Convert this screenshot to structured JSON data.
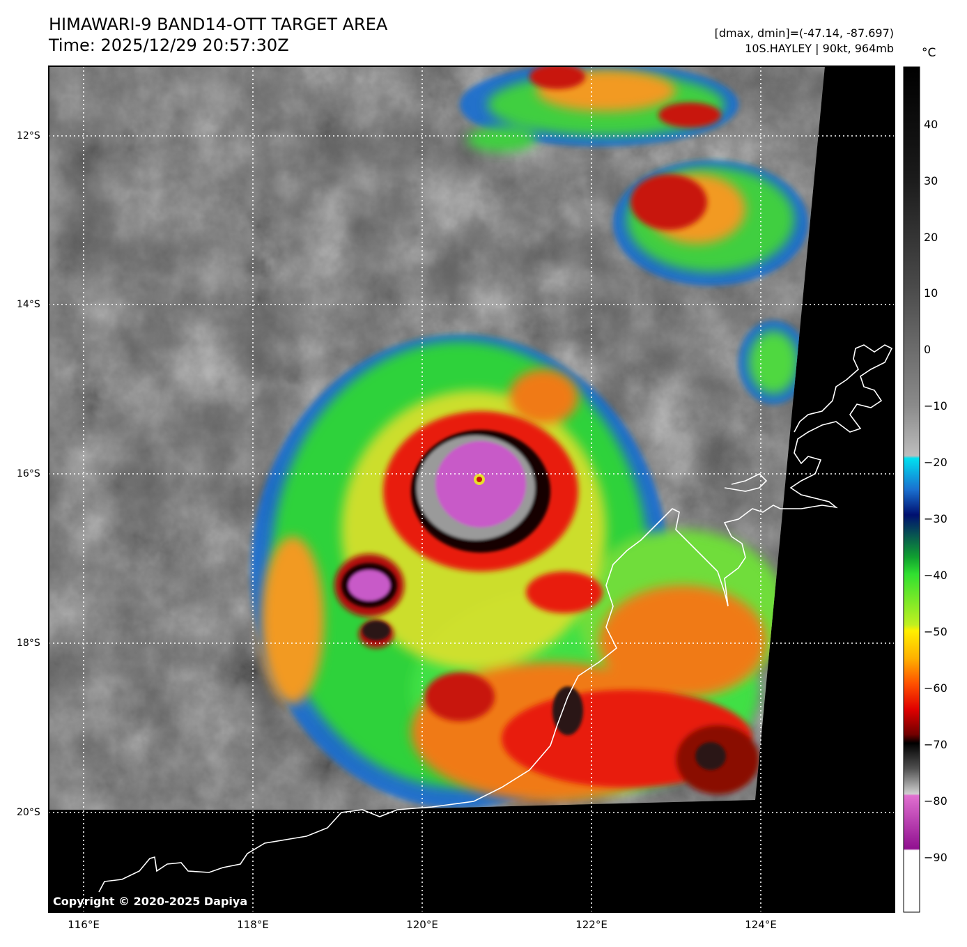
{
  "header": {
    "title_line1": "HIMAWARI-9 BAND14-OTT TARGET AREA",
    "title_line2": "Time: 2025/12/29 20:57:30Z",
    "range_text": "[dmax, dmin]=(-47.14, -87.697)",
    "storm_text": "10S.HAYLEY | 90kt, 964mb"
  },
  "axes": {
    "lat_labels": [
      "12°S",
      "14°S",
      "16°S",
      "18°S",
      "20°S"
    ],
    "lon_labels": [
      "116°E",
      "118°E",
      "120°E",
      "122°E",
      "124°E"
    ],
    "lat_range": [
      -11.2,
      -21.2
    ],
    "lon_range": [
      115.6,
      125.6
    ]
  },
  "colorbar": {
    "unit": "°C",
    "ticks": [
      "40",
      "30",
      "20",
      "10",
      "0",
      "−10",
      "−20",
      "−30",
      "−40",
      "−50",
      "−60",
      "−70",
      "−80",
      "−90"
    ],
    "range": [
      -100,
      50
    ]
  },
  "map": {
    "storm_center_lat": -16.05,
    "storm_center_lon": 120.7,
    "copyright": "Copyright © 2020-2025 Dapiya"
  }
}
